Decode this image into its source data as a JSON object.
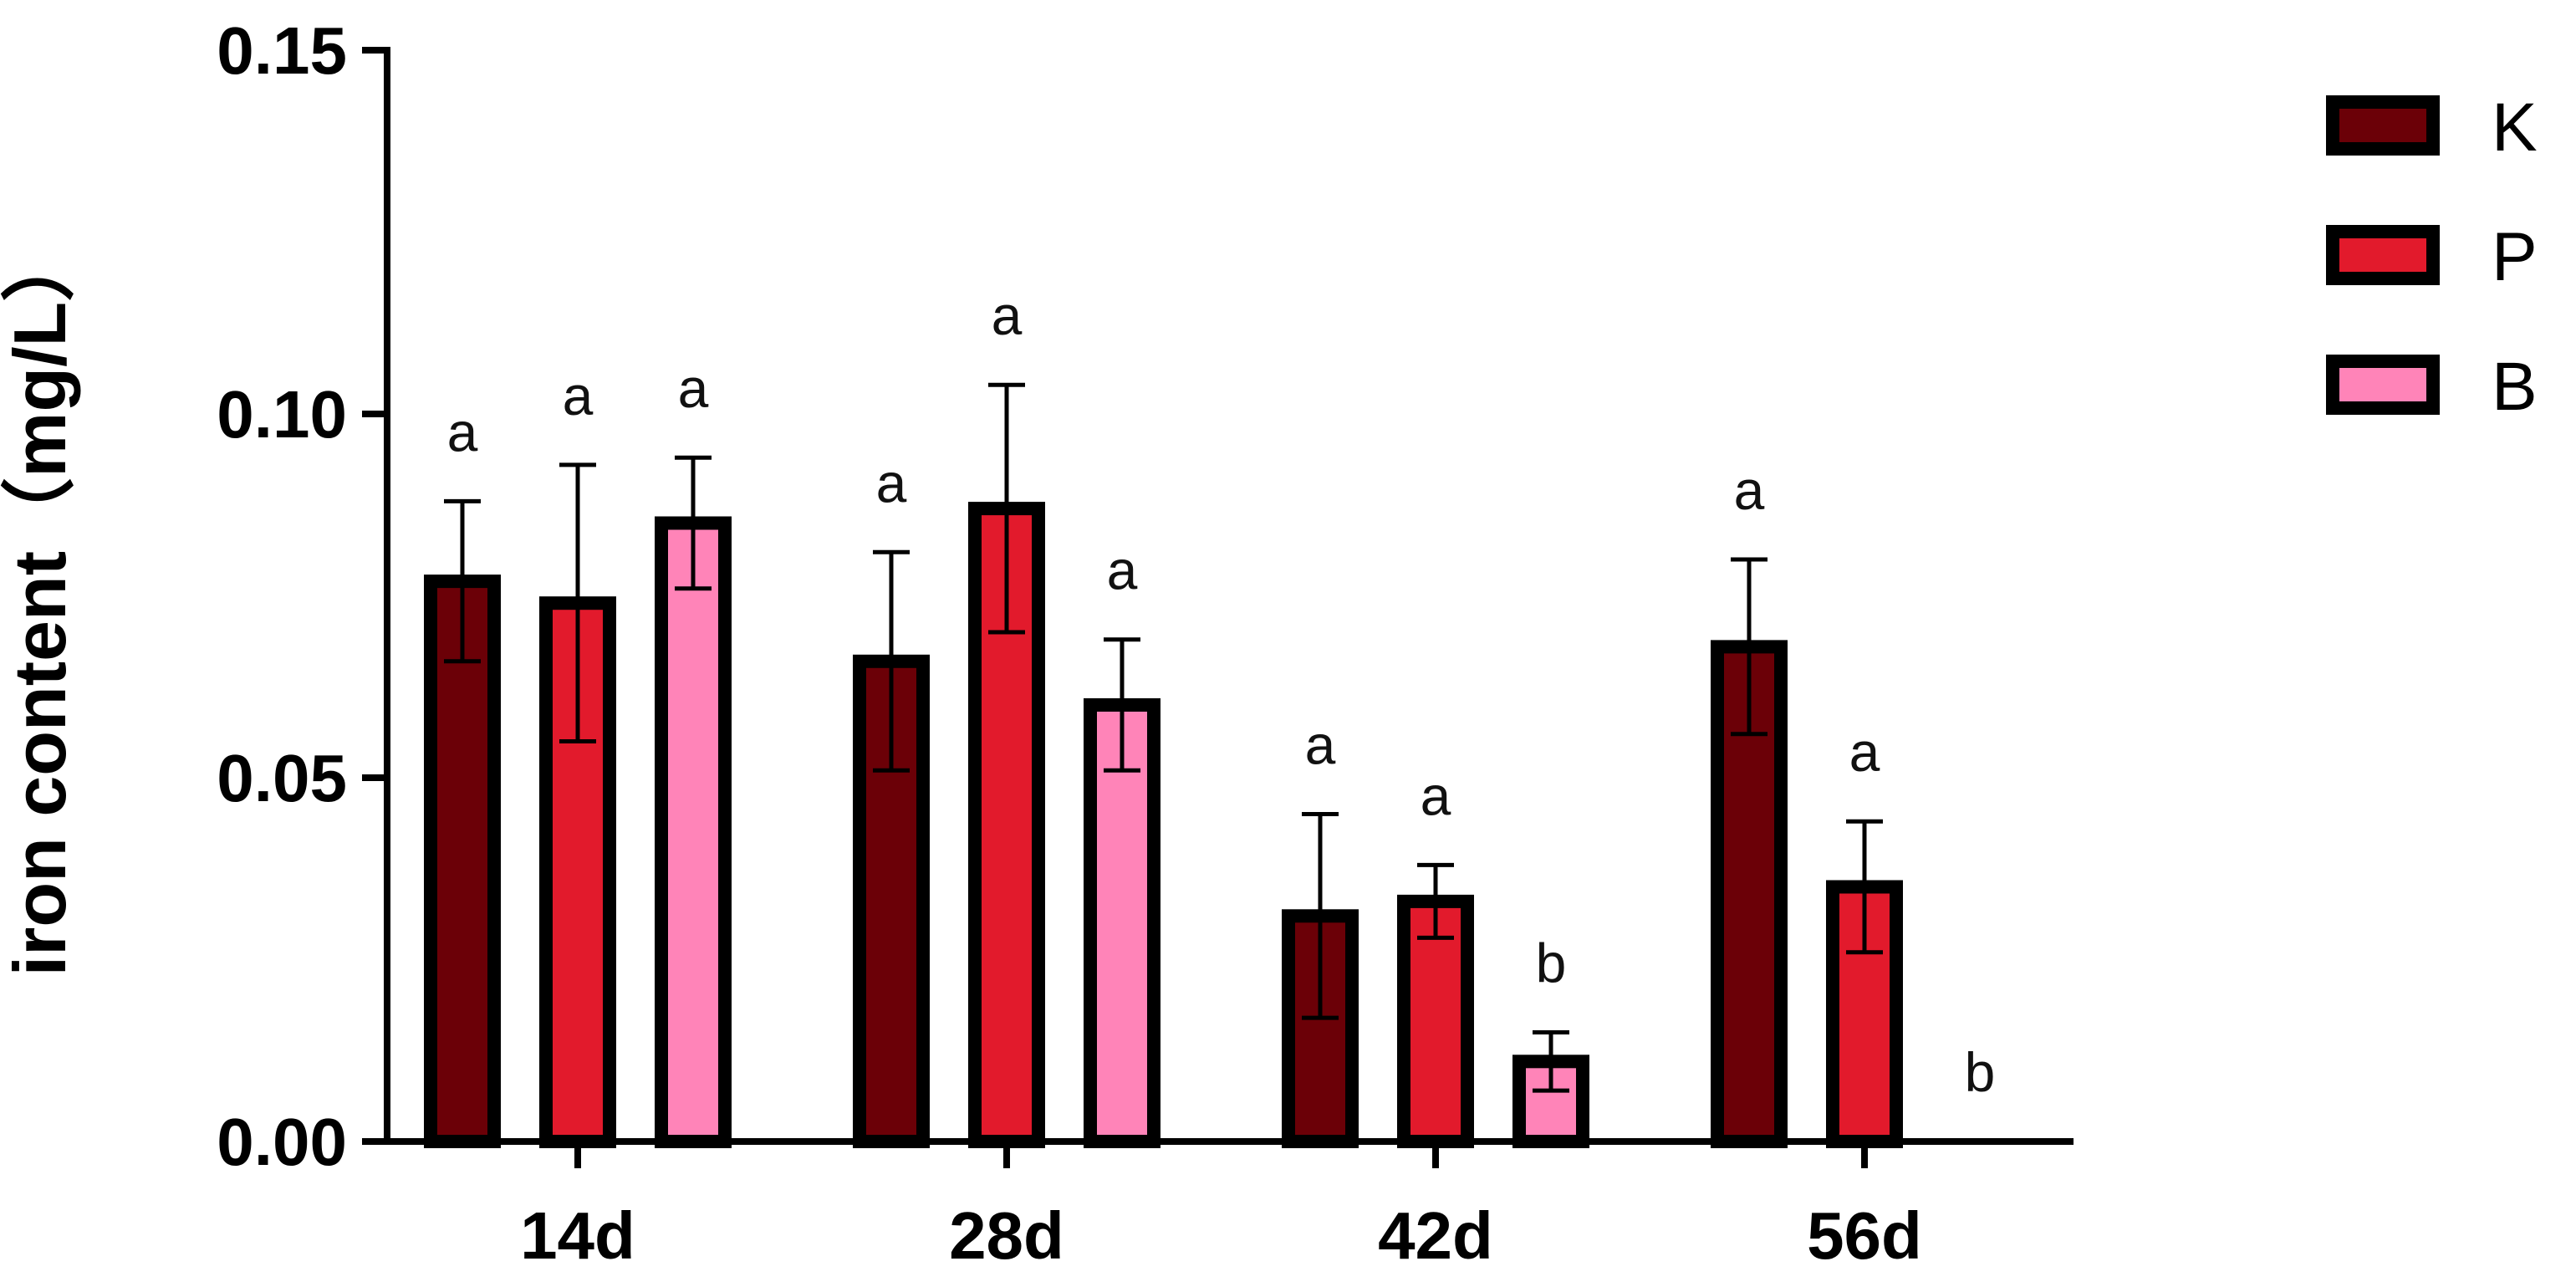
{
  "chart_data": {
    "type": "bar",
    "ylabel": "iron content（mg/L）",
    "xlabel": "",
    "ylim": [
      0,
      0.15
    ],
    "yticks": [
      "0.00",
      "0.05",
      "0.10",
      "0.15"
    ],
    "ytick_values": [
      0,
      0.05,
      0.1,
      0.15
    ],
    "categories": [
      "14d",
      "28d",
      "42d",
      "56d"
    ],
    "legend_position": "top-right",
    "grid": false,
    "series": [
      {
        "name": "K",
        "color": "#6B0007",
        "values": [
          0.077,
          0.066,
          0.031,
          0.068
        ],
        "errors": [
          0.011,
          0.015,
          0.014,
          0.012
        ],
        "significance": [
          "a",
          "a",
          "a",
          "a"
        ]
      },
      {
        "name": "P",
        "color": "#E21A2C",
        "values": [
          0.074,
          0.087,
          0.033,
          0.035
        ],
        "errors": [
          0.019,
          0.017,
          0.005,
          0.009
        ],
        "significance": [
          "a",
          "a",
          "a",
          "a"
        ]
      },
      {
        "name": "B",
        "color": "#FF84B8",
        "values": [
          0.085,
          0.06,
          0.011,
          0.0
        ],
        "errors": [
          0.009,
          0.009,
          0.004,
          0.0
        ],
        "significance": [
          "a",
          "a",
          "b",
          "b"
        ]
      }
    ]
  }
}
